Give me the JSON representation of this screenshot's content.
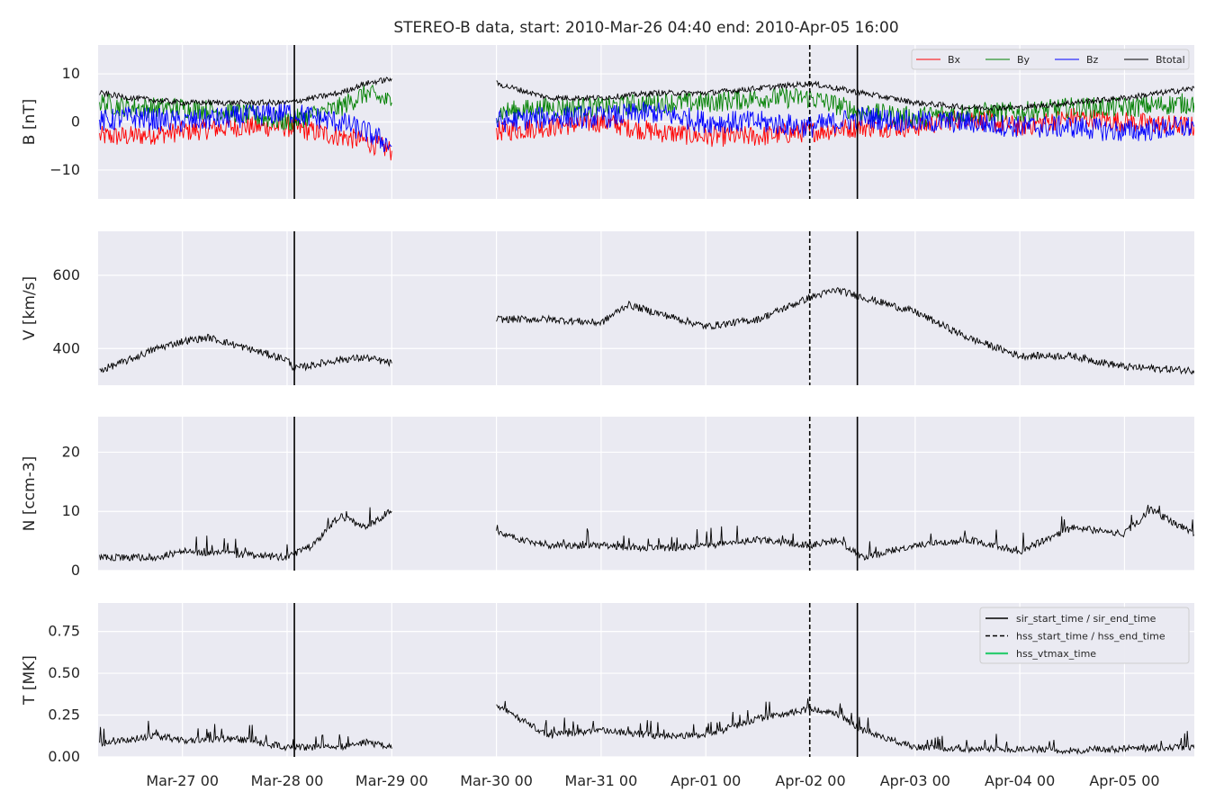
{
  "chart_data": {
    "type": "line",
    "title": "STEREO-B data, start: 2010-Mar-26 04:40  end: 2010-Apr-05 16:00",
    "x_range": [
      "2010-03-26 04:40",
      "2010-04-05 16:00"
    ],
    "xticks": [
      {
        "t": "2010-03-27 00:00",
        "label": "Mar-27 00"
      },
      {
        "t": "2010-03-28 00:00",
        "label": "Mar-28 00"
      },
      {
        "t": "2010-03-29 00:00",
        "label": "Mar-29 00"
      },
      {
        "t": "2010-03-30 00:00",
        "label": "Mar-30 00"
      },
      {
        "t": "2010-03-31 00:00",
        "label": "Mar-31 00"
      },
      {
        "t": "2010-04-01 00:00",
        "label": "Apr-01 00"
      },
      {
        "t": "2010-04-02 00:00",
        "label": "Apr-02 00"
      },
      {
        "t": "2010-04-03 00:00",
        "label": "Apr-03 00"
      },
      {
        "t": "2010-04-04 00:00",
        "label": "Apr-04 00"
      },
      {
        "t": "2010-04-05 00:00",
        "label": "Apr-05 00"
      }
    ],
    "data_gap": [
      "2010-03-29 00:10",
      "2010-03-30 00:00"
    ],
    "event_lines": [
      {
        "t": "2010-03-28 01:40",
        "style": "solid",
        "legend": "sir_start_time / sir_end_time"
      },
      {
        "t": "2010-04-02 10:45",
        "style": "solid",
        "legend": "sir_start_time / sir_end_time"
      },
      {
        "t": "2010-04-01 23:50",
        "style": "dashed",
        "legend": "hss_start_time / hss_end_time"
      }
    ],
    "event_legend": [
      {
        "label": "sir_start_time / sir_end_time",
        "style": "solid",
        "color": "#000000"
      },
      {
        "label": "hss_start_time / hss_end_time",
        "style": "dashed",
        "color": "#000000"
      },
      {
        "label": "hss_vtmax_time",
        "style": "solid",
        "color": "#2ecc71"
      }
    ],
    "panels": [
      {
        "ylabel": "B [nT]",
        "ylim": [
          -16,
          16
        ],
        "yticks": [
          -10,
          0,
          10
        ],
        "legend": "top-right",
        "series": [
          {
            "name": "Bx",
            "color": "#ff0000",
            "points": [
              [
                "2010-03-26 05:00",
                -3
              ],
              [
                "2010-03-26 12:00",
                -3
              ],
              [
                "2010-03-27 00:00",
                -2
              ],
              [
                "2010-03-27 12:00",
                -1
              ],
              [
                "2010-03-28 00:00",
                -1
              ],
              [
                "2010-03-28 12:00",
                -3
              ],
              [
                "2010-03-28 18:00",
                -4
              ],
              [
                "2010-03-29 00:00",
                -6
              ],
              [
                "2010-03-30 00:00",
                -2
              ],
              [
                "2010-03-30 12:00",
                -1
              ],
              [
                "2010-03-31 00:00",
                0
              ],
              [
                "2010-03-31 12:00",
                -2
              ],
              [
                "2010-04-01 00:00",
                -3
              ],
              [
                "2010-04-01 12:00",
                -3
              ],
              [
                "2010-04-02 00:00",
                -2
              ],
              [
                "2010-04-02 12:00",
                -1
              ],
              [
                "2010-04-03 00:00",
                -1
              ],
              [
                "2010-04-03 12:00",
                1
              ],
              [
                "2010-04-04 00:00",
                -1
              ],
              [
                "2010-04-04 12:00",
                1
              ],
              [
                "2010-04-05 00:00",
                0
              ],
              [
                "2010-04-05 16:00",
                -1
              ]
            ]
          },
          {
            "name": "By",
            "color": "#008000",
            "points": [
              [
                "2010-03-26 05:00",
                4
              ],
              [
                "2010-03-26 12:00",
                3
              ],
              [
                "2010-03-27 00:00",
                3
              ],
              [
                "2010-03-27 12:00",
                2
              ],
              [
                "2010-03-28 00:00",
                0
              ],
              [
                "2010-03-28 12:00",
                3
              ],
              [
                "2010-03-28 18:00",
                6
              ],
              [
                "2010-03-29 00:00",
                4
              ],
              [
                "2010-03-30 00:00",
                2
              ],
              [
                "2010-03-30 12:00",
                3
              ],
              [
                "2010-03-31 00:00",
                3
              ],
              [
                "2010-03-31 12:00",
                4
              ],
              [
                "2010-04-01 00:00",
                4
              ],
              [
                "2010-04-01 12:00",
                5
              ],
              [
                "2010-04-02 00:00",
                5
              ],
              [
                "2010-04-02 12:00",
                2
              ],
              [
                "2010-04-03 00:00",
                1
              ],
              [
                "2010-04-03 12:00",
                2
              ],
              [
                "2010-04-04 00:00",
                2
              ],
              [
                "2010-04-04 12:00",
                3
              ],
              [
                "2010-04-05 00:00",
                3
              ],
              [
                "2010-04-05 16:00",
                4
              ]
            ]
          },
          {
            "name": "Bz",
            "color": "#0000ff",
            "points": [
              [
                "2010-03-26 05:00",
                0
              ],
              [
                "2010-03-26 12:00",
                1
              ],
              [
                "2010-03-27 00:00",
                0
              ],
              [
                "2010-03-27 12:00",
                1
              ],
              [
                "2010-03-28 00:00",
                2
              ],
              [
                "2010-03-28 12:00",
                0
              ],
              [
                "2010-03-28 18:00",
                -2
              ],
              [
                "2010-03-29 00:00",
                -5
              ],
              [
                "2010-03-30 00:00",
                0
              ],
              [
                "2010-03-30 12:00",
                1
              ],
              [
                "2010-03-31 00:00",
                1
              ],
              [
                "2010-03-31 12:00",
                2
              ],
              [
                "2010-04-01 00:00",
                0
              ],
              [
                "2010-04-01 12:00",
                0
              ],
              [
                "2010-04-02 00:00",
                -1
              ],
              [
                "2010-04-02 12:00",
                1
              ],
              [
                "2010-04-03 00:00",
                0
              ],
              [
                "2010-04-03 12:00",
                0
              ],
              [
                "2010-04-04 00:00",
                -1
              ],
              [
                "2010-04-04 12:00",
                -1
              ],
              [
                "2010-04-05 00:00",
                -2
              ],
              [
                "2010-04-05 16:00",
                -1
              ]
            ]
          },
          {
            "name": "Btotal",
            "color": "#000000",
            "points": [
              [
                "2010-03-26 05:00",
                6
              ],
              [
                "2010-03-26 12:00",
                5
              ],
              [
                "2010-03-27 00:00",
                4
              ],
              [
                "2010-03-27 12:00",
                4
              ],
              [
                "2010-03-28 00:00",
                4
              ],
              [
                "2010-03-28 12:00",
                6
              ],
              [
                "2010-03-28 18:00",
                8
              ],
              [
                "2010-03-29 00:00",
                9
              ],
              [
                "2010-03-30 00:00",
                8
              ],
              [
                "2010-03-30 12:00",
                5
              ],
              [
                "2010-03-31 00:00",
                5
              ],
              [
                "2010-03-31 12:00",
                6
              ],
              [
                "2010-04-01 00:00",
                6
              ],
              [
                "2010-04-01 12:00",
                7
              ],
              [
                "2010-04-02 00:00",
                8
              ],
              [
                "2010-04-02 12:00",
                6
              ],
              [
                "2010-04-03 00:00",
                4
              ],
              [
                "2010-04-03 12:00",
                3
              ],
              [
                "2010-04-04 00:00",
                3
              ],
              [
                "2010-04-04 12:00",
                4
              ],
              [
                "2010-04-05 00:00",
                5
              ],
              [
                "2010-04-05 16:00",
                7
              ]
            ]
          }
        ]
      },
      {
        "ylabel": "V [km/s]",
        "ylim": [
          300,
          720
        ],
        "yticks": [
          400,
          600
        ],
        "series": [
          {
            "name": "",
            "color": "#000000",
            "points": [
              [
                "2010-03-26 05:00",
                340
              ],
              [
                "2010-03-26 12:00",
                370
              ],
              [
                "2010-03-26 18:00",
                400
              ],
              [
                "2010-03-27 00:00",
                420
              ],
              [
                "2010-03-27 06:00",
                430
              ],
              [
                "2010-03-27 12:00",
                410
              ],
              [
                "2010-03-28 00:00",
                370
              ],
              [
                "2010-03-28 01:40",
                345
              ],
              [
                "2010-03-28 12:00",
                370
              ],
              [
                "2010-03-28 18:00",
                375
              ],
              [
                "2010-03-29 00:00",
                360
              ],
              [
                "2010-03-30 00:00",
                480
              ],
              [
                "2010-03-30 12:00",
                480
              ],
              [
                "2010-03-31 00:00",
                470
              ],
              [
                "2010-03-31 06:00",
                520
              ],
              [
                "2010-03-31 12:00",
                500
              ],
              [
                "2010-04-01 00:00",
                460
              ],
              [
                "2010-04-01 12:00",
                480
              ],
              [
                "2010-04-02 00:00",
                540
              ],
              [
                "2010-04-02 06:00",
                560
              ],
              [
                "2010-04-02 12:00",
                540
              ],
              [
                "2010-04-03 00:00",
                500
              ],
              [
                "2010-04-03 12:00",
                430
              ],
              [
                "2010-04-04 00:00",
                380
              ],
              [
                "2010-04-04 12:00",
                380
              ],
              [
                "2010-04-05 00:00",
                350
              ],
              [
                "2010-04-05 16:00",
                340
              ]
            ]
          }
        ]
      },
      {
        "ylabel": "N [ccm-3]",
        "ylim": [
          0,
          26
        ],
        "yticks": [
          0,
          10,
          20
        ],
        "series": [
          {
            "name": "",
            "color": "#000000",
            "points": [
              [
                "2010-03-26 05:00",
                2
              ],
              [
                "2010-03-26 18:00",
                2
              ],
              [
                "2010-03-27 00:00",
                3
              ],
              [
                "2010-03-27 12:00",
                2.5
              ],
              [
                "2010-03-28 00:00",
                2
              ],
              [
                "2010-03-28 06:00",
                4
              ],
              [
                "2010-03-28 12:00",
                9
              ],
              [
                "2010-03-28 18:00",
                7
              ],
              [
                "2010-03-29 00:00",
                10
              ],
              [
                "2010-03-30 00:00",
                6
              ],
              [
                "2010-03-30 12:00",
                4
              ],
              [
                "2010-03-31 00:00",
                4
              ],
              [
                "2010-03-31 12:00",
                3.5
              ],
              [
                "2010-04-01 00:00",
                4
              ],
              [
                "2010-04-01 12:00",
                5
              ],
              [
                "2010-04-02 00:00",
                4
              ],
              [
                "2010-04-02 06:00",
                5
              ],
              [
                "2010-04-02 12:00",
                2
              ],
              [
                "2010-04-03 00:00",
                4
              ],
              [
                "2010-04-03 12:00",
                5
              ],
              [
                "2010-04-04 00:00",
                3
              ],
              [
                "2010-04-04 12:00",
                7
              ],
              [
                "2010-04-05 00:00",
                6
              ],
              [
                "2010-04-05 06:00",
                10
              ],
              [
                "2010-04-05 16:00",
                6
              ]
            ]
          }
        ]
      },
      {
        "ylabel": "T [MK]",
        "ylim": [
          0,
          0.92
        ],
        "yticks": [
          0,
          0.25,
          0.5,
          0.75
        ],
        "ytick_labels": [
          "0.00",
          "0.25",
          "0.50",
          "0.75"
        ],
        "legend": "top-right",
        "series": [
          {
            "name": "",
            "color": "#000000",
            "points": [
              [
                "2010-03-26 05:00",
                0.07
              ],
              [
                "2010-03-26 18:00",
                0.12
              ],
              [
                "2010-03-27 00:00",
                0.09
              ],
              [
                "2010-03-27 12:00",
                0.1
              ],
              [
                "2010-03-28 00:00",
                0.05
              ],
              [
                "2010-03-28 12:00",
                0.05
              ],
              [
                "2010-03-28 18:00",
                0.08
              ],
              [
                "2010-03-29 00:00",
                0.05
              ],
              [
                "2010-03-30 00:00",
                0.3
              ],
              [
                "2010-03-30 12:00",
                0.12
              ],
              [
                "2010-03-31 00:00",
                0.15
              ],
              [
                "2010-03-31 12:00",
                0.12
              ],
              [
                "2010-04-01 00:00",
                0.12
              ],
              [
                "2010-04-01 12:00",
                0.22
              ],
              [
                "2010-04-02 00:00",
                0.28
              ],
              [
                "2010-04-02 06:00",
                0.25
              ],
              [
                "2010-04-02 12:00",
                0.15
              ],
              [
                "2010-04-03 00:00",
                0.05
              ],
              [
                "2010-04-03 12:00",
                0.04
              ],
              [
                "2010-04-04 00:00",
                0.04
              ],
              [
                "2010-04-04 12:00",
                0.03
              ],
              [
                "2010-04-05 00:00",
                0.04
              ],
              [
                "2010-04-05 16:00",
                0.05
              ]
            ]
          }
        ]
      }
    ]
  }
}
